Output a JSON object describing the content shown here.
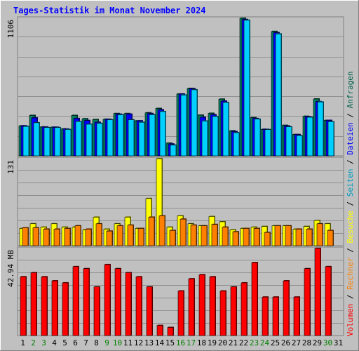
{
  "chart_data": {
    "type": "bar",
    "title": "Tages-Statistik im Monat November 2024",
    "categories": [
      "1",
      "2",
      "3",
      "4",
      "5",
      "6",
      "7",
      "8",
      "9",
      "10",
      "11",
      "12",
      "13",
      "14",
      "15",
      "16",
      "17",
      "18",
      "19",
      "20",
      "21",
      "22",
      "23",
      "24",
      "25",
      "26",
      "27",
      "28",
      "29",
      "30",
      "31"
    ],
    "weekend_days": [
      "2",
      "3",
      "9",
      "10",
      "16",
      "17",
      "23",
      "24",
      "30"
    ],
    "top_panel": {
      "max_label": "1106",
      "ymax": 1106,
      "series": [
        {
          "name": "Anfragen",
          "color": "#008060",
          "values": [
            241,
            325,
            232,
            230,
            216,
            325,
            298,
            292,
            294,
            340,
            340,
            281,
            346,
            381,
            102,
            497,
            542,
            327,
            342,
            456,
            201,
            1106,
            307,
            213,
            1000,
            245,
            171,
            318,
            457,
            285,
            0
          ]
        },
        {
          "name": "Dateien",
          "color": "#0000ff",
          "values": [
            241,
            305,
            232,
            230,
            216,
            300,
            284,
            270,
            294,
            335,
            335,
            281,
            340,
            370,
            95,
            497,
            540,
            310,
            330,
            440,
            195,
            1096,
            300,
            213,
            990,
            240,
            171,
            315,
            436,
            285,
            0
          ]
        },
        {
          "name": "Seiten",
          "color": "#00d0ff",
          "values": [
            236,
            266,
            227,
            227,
            212,
            276,
            254,
            261,
            290,
            330,
            290,
            270,
            330,
            356,
            86,
            489,
            531,
            280,
            316,
            429,
            186,
            1090,
            295,
            211,
            980,
            233,
            162,
            310,
            433,
            274,
            0
          ]
        }
      ]
    },
    "middle_panel": {
      "max_label": "131",
      "ymax": 131,
      "series": [
        {
          "name": "Besuche",
          "color": "#ffff00",
          "values": [
            26,
            33,
            28,
            33,
            28,
            28,
            24,
            43,
            25,
            33,
            43,
            26,
            71,
            131,
            28,
            45,
            33,
            30,
            44,
            36,
            24,
            26,
            28,
            29,
            30,
            30,
            25,
            29,
            38,
            33,
            0
          ]
        },
        {
          "name": "Rechner",
          "color": "#ff8000",
          "values": [
            27,
            27,
            25,
            25,
            26,
            30,
            25,
            33,
            22,
            30,
            31,
            26,
            43,
            45,
            23,
            40,
            31,
            30,
            32,
            28,
            21,
            26,
            26,
            20,
            30,
            30,
            25,
            25,
            33,
            23,
            0
          ]
        }
      ]
    },
    "bottom_panel": {
      "max_label": "42.94 MB",
      "ymax": 42.94,
      "series": [
        {
          "name": "Volumen",
          "color": "#ff0000",
          "values": [
            29,
            31,
            29,
            27,
            26,
            34,
            33,
            24,
            35,
            33,
            31,
            29,
            24,
            5,
            4,
            22,
            28,
            30,
            29,
            22,
            24,
            26,
            36,
            19,
            19,
            27,
            19,
            33,
            43,
            34,
            0
          ]
        }
      ]
    },
    "legend_labels": [
      "Volumen",
      "Rechner",
      "Besuche",
      "Seiten",
      "Dateien",
      "Anfragen"
    ],
    "legend_separator": " / "
  }
}
